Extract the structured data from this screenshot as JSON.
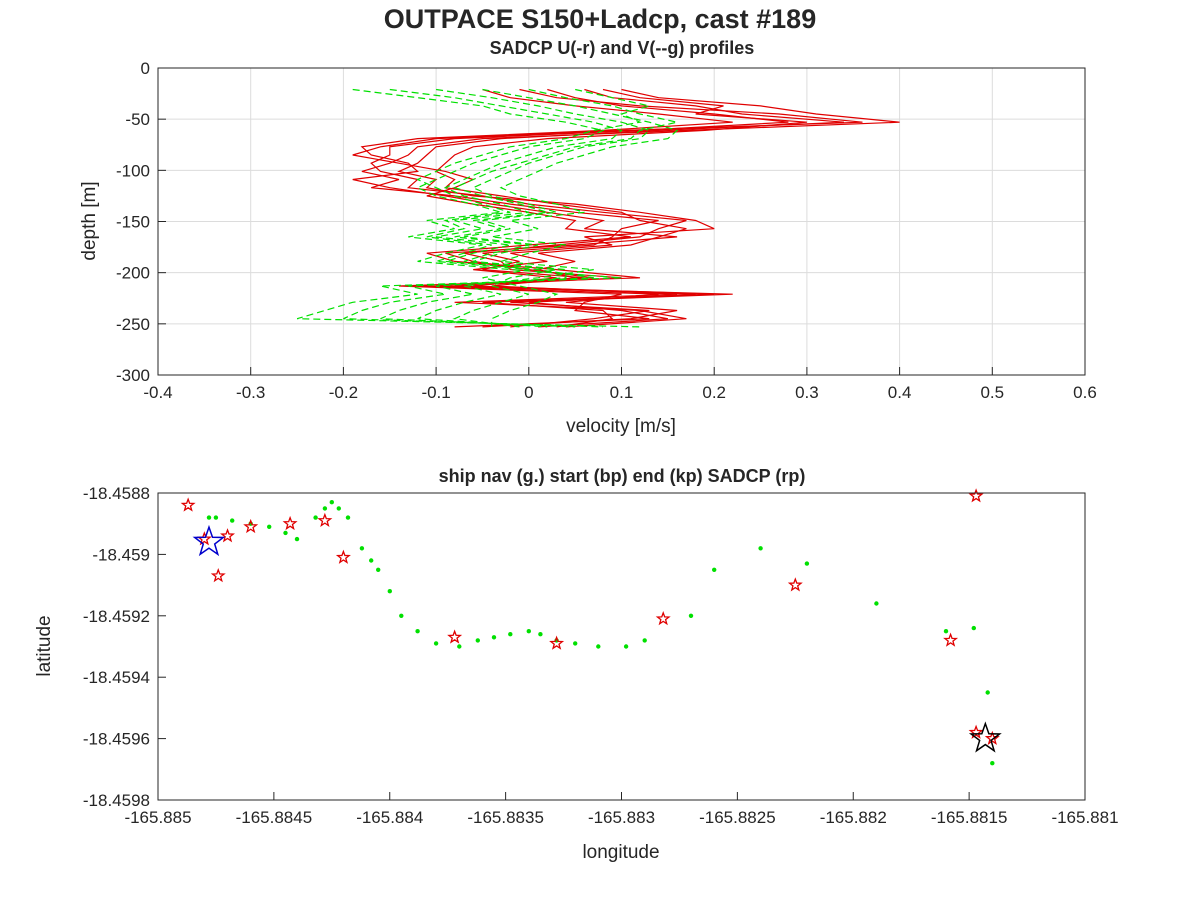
{
  "figure": {
    "title": "OUTPACE S150+Ladcp, cast #189"
  },
  "chart_data": [
    {
      "type": "line",
      "title": "SADCP U(-r) and V(--g) profiles",
      "xlabel": "velocity [m/s]",
      "ylabel": "depth [m]",
      "xlim": [
        -0.4,
        0.6
      ],
      "ylim": [
        -300,
        0
      ],
      "xticks": [
        -0.4,
        -0.3,
        -0.2,
        -0.1,
        0,
        0.1,
        0.2,
        0.3,
        0.4,
        0.5,
        0.6
      ],
      "xtick_labels": [
        "-0.4",
        "-0.3",
        "-0.2",
        "-0.1",
        "0",
        "0.1",
        "0.2",
        "0.3",
        "0.4",
        "0.5",
        "0.6"
      ],
      "yticks": [
        0,
        -50,
        -100,
        -150,
        -200,
        -250,
        -300
      ],
      "ytick_labels": [
        "0",
        "-50",
        "-100",
        "-150",
        "-200",
        "-250",
        "-300"
      ],
      "grid": true,
      "depths": [
        -21,
        -29,
        -37,
        -45,
        -53,
        -61,
        -69,
        -77,
        -85,
        -93,
        -101,
        -109,
        -117,
        -125,
        -133,
        -141,
        -149,
        -157,
        -165,
        -173,
        -181,
        -189,
        -197,
        -205,
        -213,
        -221,
        -229,
        -237,
        -245,
        -253
      ],
      "series": [
        {
          "component": "U",
          "color": "#e00000",
          "dash": "solid",
          "values": [
            0.1,
            0.14,
            0.25,
            0.31,
            0.4,
            0.17,
            -0.05,
            -0.12,
            -0.13,
            -0.15,
            -0.18,
            -0.14,
            -0.17,
            -0.08,
            -0.02,
            0.05,
            0.14,
            0.1,
            0.09,
            0.07,
            -0.05,
            -0.01,
            -0.05,
            0.06,
            -0.1,
            0.22,
            -0.02,
            0.13,
            0.07,
            -0.02
          ]
        },
        {
          "component": "U",
          "color": "#e00000",
          "dash": "solid",
          "values": [
            0.02,
            0.05,
            0.1,
            0.2,
            0.28,
            0.12,
            -0.08,
            -0.15,
            -0.15,
            -0.17,
            -0.16,
            -0.12,
            -0.13,
            -0.05,
            0.0,
            0.08,
            0.17,
            0.14,
            0.12,
            0.03,
            -0.07,
            -0.03,
            -0.02,
            0.1,
            -0.08,
            0.18,
            0.0,
            0.1,
            0.15,
            0.01
          ]
        },
        {
          "component": "U",
          "color": "#e00000",
          "dash": "solid",
          "values": [
            -0.05,
            -0.02,
            0.05,
            0.14,
            0.22,
            0.08,
            -0.12,
            -0.18,
            -0.17,
            -0.13,
            -0.12,
            -0.19,
            -0.15,
            -0.09,
            -0.04,
            0.02,
            0.08,
            0.06,
            0.16,
            0.05,
            -0.09,
            -0.06,
            0.0,
            0.07,
            -0.12,
            0.14,
            0.04,
            0.16,
            0.11,
            -0.05
          ]
        },
        {
          "component": "U",
          "color": "#e00000",
          "dash": "solid",
          "values": [
            0.06,
            0.09,
            0.18,
            0.23,
            0.34,
            0.14,
            -0.03,
            -0.1,
            -0.11,
            -0.12,
            -0.14,
            -0.1,
            -0.11,
            -0.06,
            0.05,
            0.12,
            0.18,
            0.2,
            0.06,
            0.09,
            -0.02,
            0.02,
            -0.06,
            0.03,
            -0.06,
            0.2,
            -0.05,
            0.08,
            0.09,
            0.03
          ]
        },
        {
          "component": "U",
          "color": "#e00000",
          "dash": "solid",
          "values": [
            -0.01,
            0.03,
            0.12,
            0.27,
            0.36,
            0.1,
            -0.1,
            -0.16,
            -0.19,
            -0.14,
            -0.09,
            -0.06,
            -0.08,
            -0.11,
            -0.06,
            0.0,
            0.05,
            0.04,
            0.11,
            0.0,
            -0.11,
            -0.08,
            0.03,
            0.12,
            -0.14,
            0.1,
            0.06,
            0.05,
            0.13,
            -0.08
          ]
        },
        {
          "component": "U",
          "color": "#e00000",
          "dash": "solid",
          "values": [
            0.08,
            0.12,
            0.21,
            0.18,
            0.3,
            0.19,
            0.02,
            -0.06,
            -0.08,
            -0.09,
            -0.1,
            -0.08,
            -0.09,
            -0.03,
            0.03,
            0.1,
            0.12,
            0.17,
            0.14,
            0.11,
            0.01,
            0.05,
            0.01,
            0.05,
            -0.04,
            0.16,
            -0.08,
            0.12,
            0.17,
            0.04
          ]
        }
      ],
      "series_2": [
        {
          "component": "V",
          "color": "#00e000",
          "dash": "dashed",
          "values": [
            -0.19,
            -0.12,
            -0.05,
            -0.02,
            0.04,
            0.08,
            0.06,
            0.0,
            -0.03,
            -0.06,
            -0.08,
            -0.1,
            -0.12,
            -0.1,
            -0.06,
            -0.03,
            -0.11,
            -0.08,
            -0.13,
            -0.05,
            -0.09,
            -0.12,
            -0.02,
            0.1,
            -0.16,
            -0.12,
            -0.19,
            -0.22,
            -0.25,
            0.12
          ]
        },
        {
          "component": "V",
          "color": "#00e000",
          "dash": "dashed",
          "values": [
            -0.15,
            -0.08,
            -0.03,
            0.02,
            0.07,
            0.1,
            0.09,
            0.03,
            0.0,
            -0.03,
            -0.05,
            -0.07,
            -0.09,
            -0.07,
            -0.03,
            0.0,
            -0.08,
            -0.05,
            -0.1,
            -0.02,
            -0.06,
            -0.09,
            0.01,
            0.07,
            -0.13,
            -0.09,
            -0.15,
            -0.18,
            -0.2,
            0.08
          ]
        },
        {
          "component": "V",
          "color": "#00e000",
          "dash": "dashed",
          "values": [
            -0.1,
            -0.04,
            0.01,
            0.05,
            0.1,
            0.13,
            0.12,
            0.06,
            0.03,
            0.0,
            -0.02,
            -0.04,
            -0.06,
            -0.04,
            0.0,
            0.03,
            -0.05,
            -0.02,
            -0.07,
            0.01,
            -0.03,
            -0.06,
            0.04,
            0.04,
            -0.1,
            -0.06,
            -0.11,
            -0.14,
            -0.16,
            0.05
          ]
        },
        {
          "component": "V",
          "color": "#00e000",
          "dash": "dashed",
          "values": [
            -0.05,
            0.0,
            0.05,
            0.09,
            0.13,
            0.16,
            0.15,
            0.09,
            0.06,
            0.03,
            0.01,
            -0.01,
            -0.03,
            -0.01,
            0.03,
            0.06,
            -0.02,
            0.01,
            -0.04,
            0.04,
            0.0,
            -0.03,
            0.07,
            0.01,
            -0.07,
            -0.03,
            -0.07,
            -0.1,
            -0.12,
            0.02
          ]
        },
        {
          "component": "V",
          "color": "#00e000",
          "dash": "dashed",
          "values": [
            0.0,
            0.04,
            0.09,
            0.12,
            0.16,
            0.12,
            0.11,
            0.05,
            0.02,
            -0.01,
            -0.04,
            -0.06,
            -0.08,
            -0.05,
            -0.01,
            0.02,
            -0.06,
            -0.03,
            -0.08,
            0.0,
            -0.04,
            -0.07,
            0.03,
            -0.02,
            -0.04,
            0.0,
            -0.03,
            -0.06,
            -0.08,
            -0.01
          ]
        },
        {
          "component": "V",
          "color": "#00e000",
          "dash": "dashed",
          "values": [
            0.05,
            0.09,
            0.13,
            0.1,
            0.12,
            0.07,
            0.04,
            -0.02,
            -0.05,
            -0.08,
            -0.1,
            -0.12,
            -0.1,
            -0.08,
            -0.05,
            -0.02,
            -0.09,
            -0.07,
            -0.11,
            -0.04,
            -0.07,
            -0.1,
            0.0,
            -0.05,
            -0.01,
            0.03,
            0.01,
            -0.02,
            -0.04,
            -0.04
          ]
        }
      ]
    },
    {
      "type": "scatter",
      "title": "ship nav (g.) start (bp) end (kp) SADCP (rp)",
      "xlabel": "longitude",
      "ylabel": "latitude",
      "xlim": [
        -165.885,
        -165.881
      ],
      "ylim": [
        -18.4598,
        -18.4588
      ],
      "xticks": [
        -165.885,
        -165.8845,
        -165.884,
        -165.8835,
        -165.883,
        -165.8825,
        -165.882,
        -165.8815,
        -165.881
      ],
      "xtick_labels": [
        "-165.885",
        "-165.8845",
        "-165.884",
        "-165.8835",
        "-165.883",
        "-165.8825",
        "-165.882",
        "-165.8815",
        "-165.881"
      ],
      "yticks": [
        -18.4588,
        -18.459,
        -18.4592,
        -18.4594,
        -18.4596,
        -18.4598
      ],
      "ytick_labels": [
        "-18.4588",
        "-18.459",
        "-18.4592",
        "-18.4594",
        "-18.4596",
        "-18.4598"
      ],
      "grid": false,
      "ship_nav": {
        "color": "#00e000",
        "lon": [
          -165.88478,
          -165.88475,
          -165.88468,
          -165.8846,
          -165.88452,
          -165.88445,
          -165.8844,
          -165.88432,
          -165.88428,
          -165.88425,
          -165.88422,
          -165.88418,
          -165.88412,
          -165.88408,
          -165.88405,
          -165.884,
          -165.88395,
          -165.88388,
          -165.8838,
          -165.8837,
          -165.88362,
          -165.88355,
          -165.88348,
          -165.8834,
          -165.88335,
          -165.88328,
          -165.8832,
          -165.8831,
          -165.88298,
          -165.8829,
          -165.8827,
          -165.8826,
          -165.8824,
          -165.8822,
          -165.8819,
          -165.8816,
          -165.88148,
          -165.88142,
          -165.8814
        ],
        "lat": [
          -18.45888,
          -18.45888,
          -18.45889,
          -18.4589,
          -18.45891,
          -18.45893,
          -18.45895,
          -18.45888,
          -18.45885,
          -18.45883,
          -18.45885,
          -18.45888,
          -18.45898,
          -18.45902,
          -18.45905,
          -18.45912,
          -18.4592,
          -18.45925,
          -18.45929,
          -18.4593,
          -18.45928,
          -18.45927,
          -18.45926,
          -18.45925,
          -18.45926,
          -18.45928,
          -18.45929,
          -18.4593,
          -18.4593,
          -18.45928,
          -18.4592,
          -18.45905,
          -18.45898,
          -18.45903,
          -18.45916,
          -18.45925,
          -18.45924,
          -18.45945,
          -18.45968
        ],
        "start": {
          "lon": -165.88478,
          "lat": -18.45896,
          "color": "#0000cc",
          "marker": "pentagram"
        },
        "end": {
          "lon": -165.88143,
          "lat": -18.4596,
          "color": "#000000",
          "marker": "pentagram"
        }
      },
      "sadcp": {
        "color": "#e00000",
        "marker": "pentagram",
        "lon": [
          -165.88487,
          -165.8848,
          -165.88474,
          -165.8847,
          -165.8846,
          -165.88443,
          -165.88428,
          -165.8842,
          -165.88372,
          -165.88328,
          -165.88282,
          -165.88225,
          -165.88158,
          -165.88147,
          -165.88147,
          -165.8814
        ],
        "lat": [
          -18.45884,
          -18.45895,
          -18.45907,
          -18.45894,
          -18.45891,
          -18.4589,
          -18.45889,
          -18.45901,
          -18.45927,
          -18.45929,
          -18.45921,
          -18.4591,
          -18.45928,
          -18.45881,
          -18.45958,
          -18.4596
        ]
      }
    }
  ]
}
